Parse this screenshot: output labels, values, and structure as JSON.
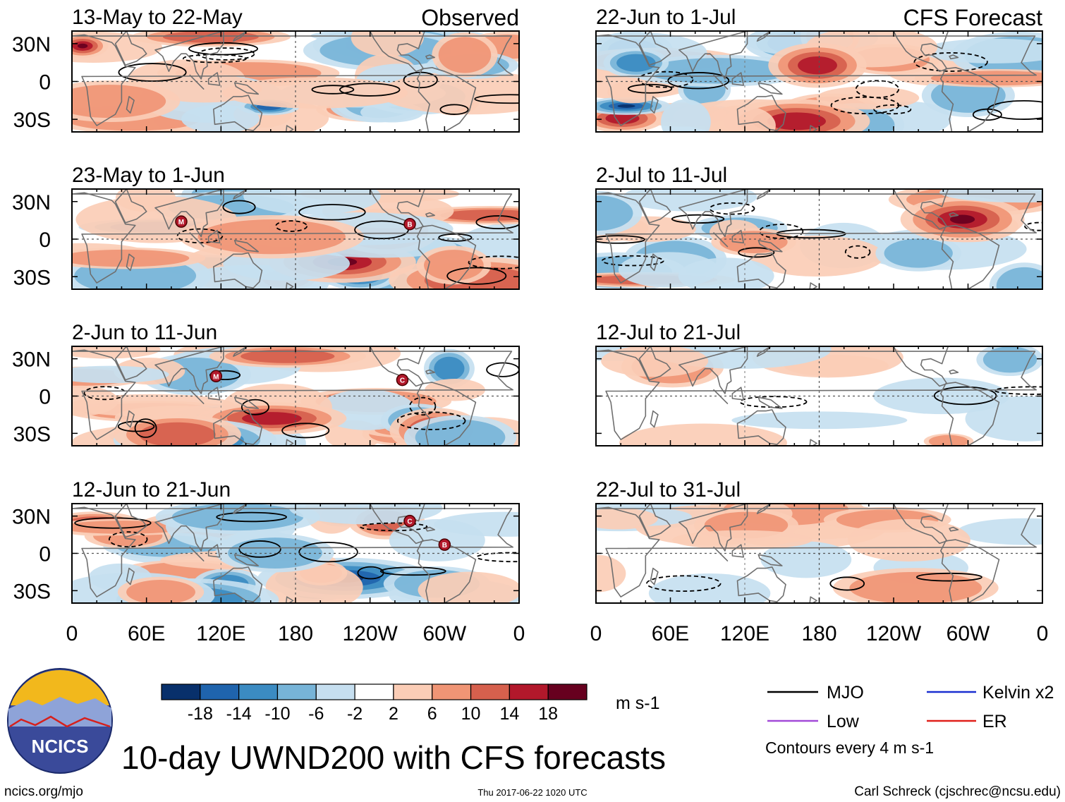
{
  "title": "10-day UWND200 with CFS forecasts",
  "site": "ncics.org/mjo",
  "timestamp": "Thu 2017-06-22 1020 UTC",
  "author": "Carl Schreck (cjschrec@ncsu.edu)",
  "logo_text": "NCICS",
  "column_labels": {
    "left": "Observed",
    "right": "CFS Forecast"
  },
  "chart_data": {
    "type": "heatmap",
    "variable": "200-hPa zonal wind anomaly",
    "x_ticks": [
      "0",
      "60E",
      "120E",
      "180",
      "120W",
      "60W",
      "0"
    ],
    "x_range": [
      0,
      360
    ],
    "y_ticks": [
      "30N",
      "0",
      "30S"
    ],
    "y_range": [
      -40,
      40
    ],
    "colorbar": {
      "unit": "m s-1",
      "levels": [
        "-18",
        "-14",
        "-10",
        "-6",
        "-2",
        "2",
        "6",
        "10",
        "14",
        "18"
      ],
      "colors": [
        "#08306b",
        "#1f64ad",
        "#3b8bc2",
        "#77b4d8",
        "#c6dff0",
        "#ffffff",
        "#fbcdb6",
        "#f09575",
        "#d6604d",
        "#b2182b",
        "#67001f"
      ]
    },
    "legend": {
      "items": [
        {
          "label": "MJO",
          "color": "#000000"
        },
        {
          "label": "Kelvin x2",
          "color": "#1a2fd0"
        },
        {
          "label": "Low",
          "color": "#a24ad8"
        },
        {
          "label": "ER",
          "color": "#e0201a"
        }
      ],
      "note": "Contours every 4 m s-1"
    },
    "observed": [
      {
        "period": "13-May to 22-May",
        "storms": []
      },
      {
        "period": "23-May to 1-Jun",
        "storms": [
          {
            "label": "M",
            "lon": 88,
            "lat": 14
          },
          {
            "label": "B",
            "lon": 272,
            "lat": 12
          }
        ]
      },
      {
        "period": "2-Jun to 11-Jun",
        "storms": [
          {
            "label": "M",
            "lon": 116,
            "lat": 16
          },
          {
            "label": "C",
            "lon": 266,
            "lat": 13
          }
        ]
      },
      {
        "period": "12-Jun to 21-Jun",
        "storms": [
          {
            "label": "C",
            "lon": 272,
            "lat": 26
          },
          {
            "label": "B",
            "lon": 300,
            "lat": 7
          }
        ]
      }
    ],
    "forecast": [
      {
        "period": "22-Jun to 1-Jul"
      },
      {
        "period": "2-Jul to 11-Jul"
      },
      {
        "period": "12-Jul to 21-Jul"
      },
      {
        "period": "22-Jul to 31-Jul"
      }
    ]
  }
}
